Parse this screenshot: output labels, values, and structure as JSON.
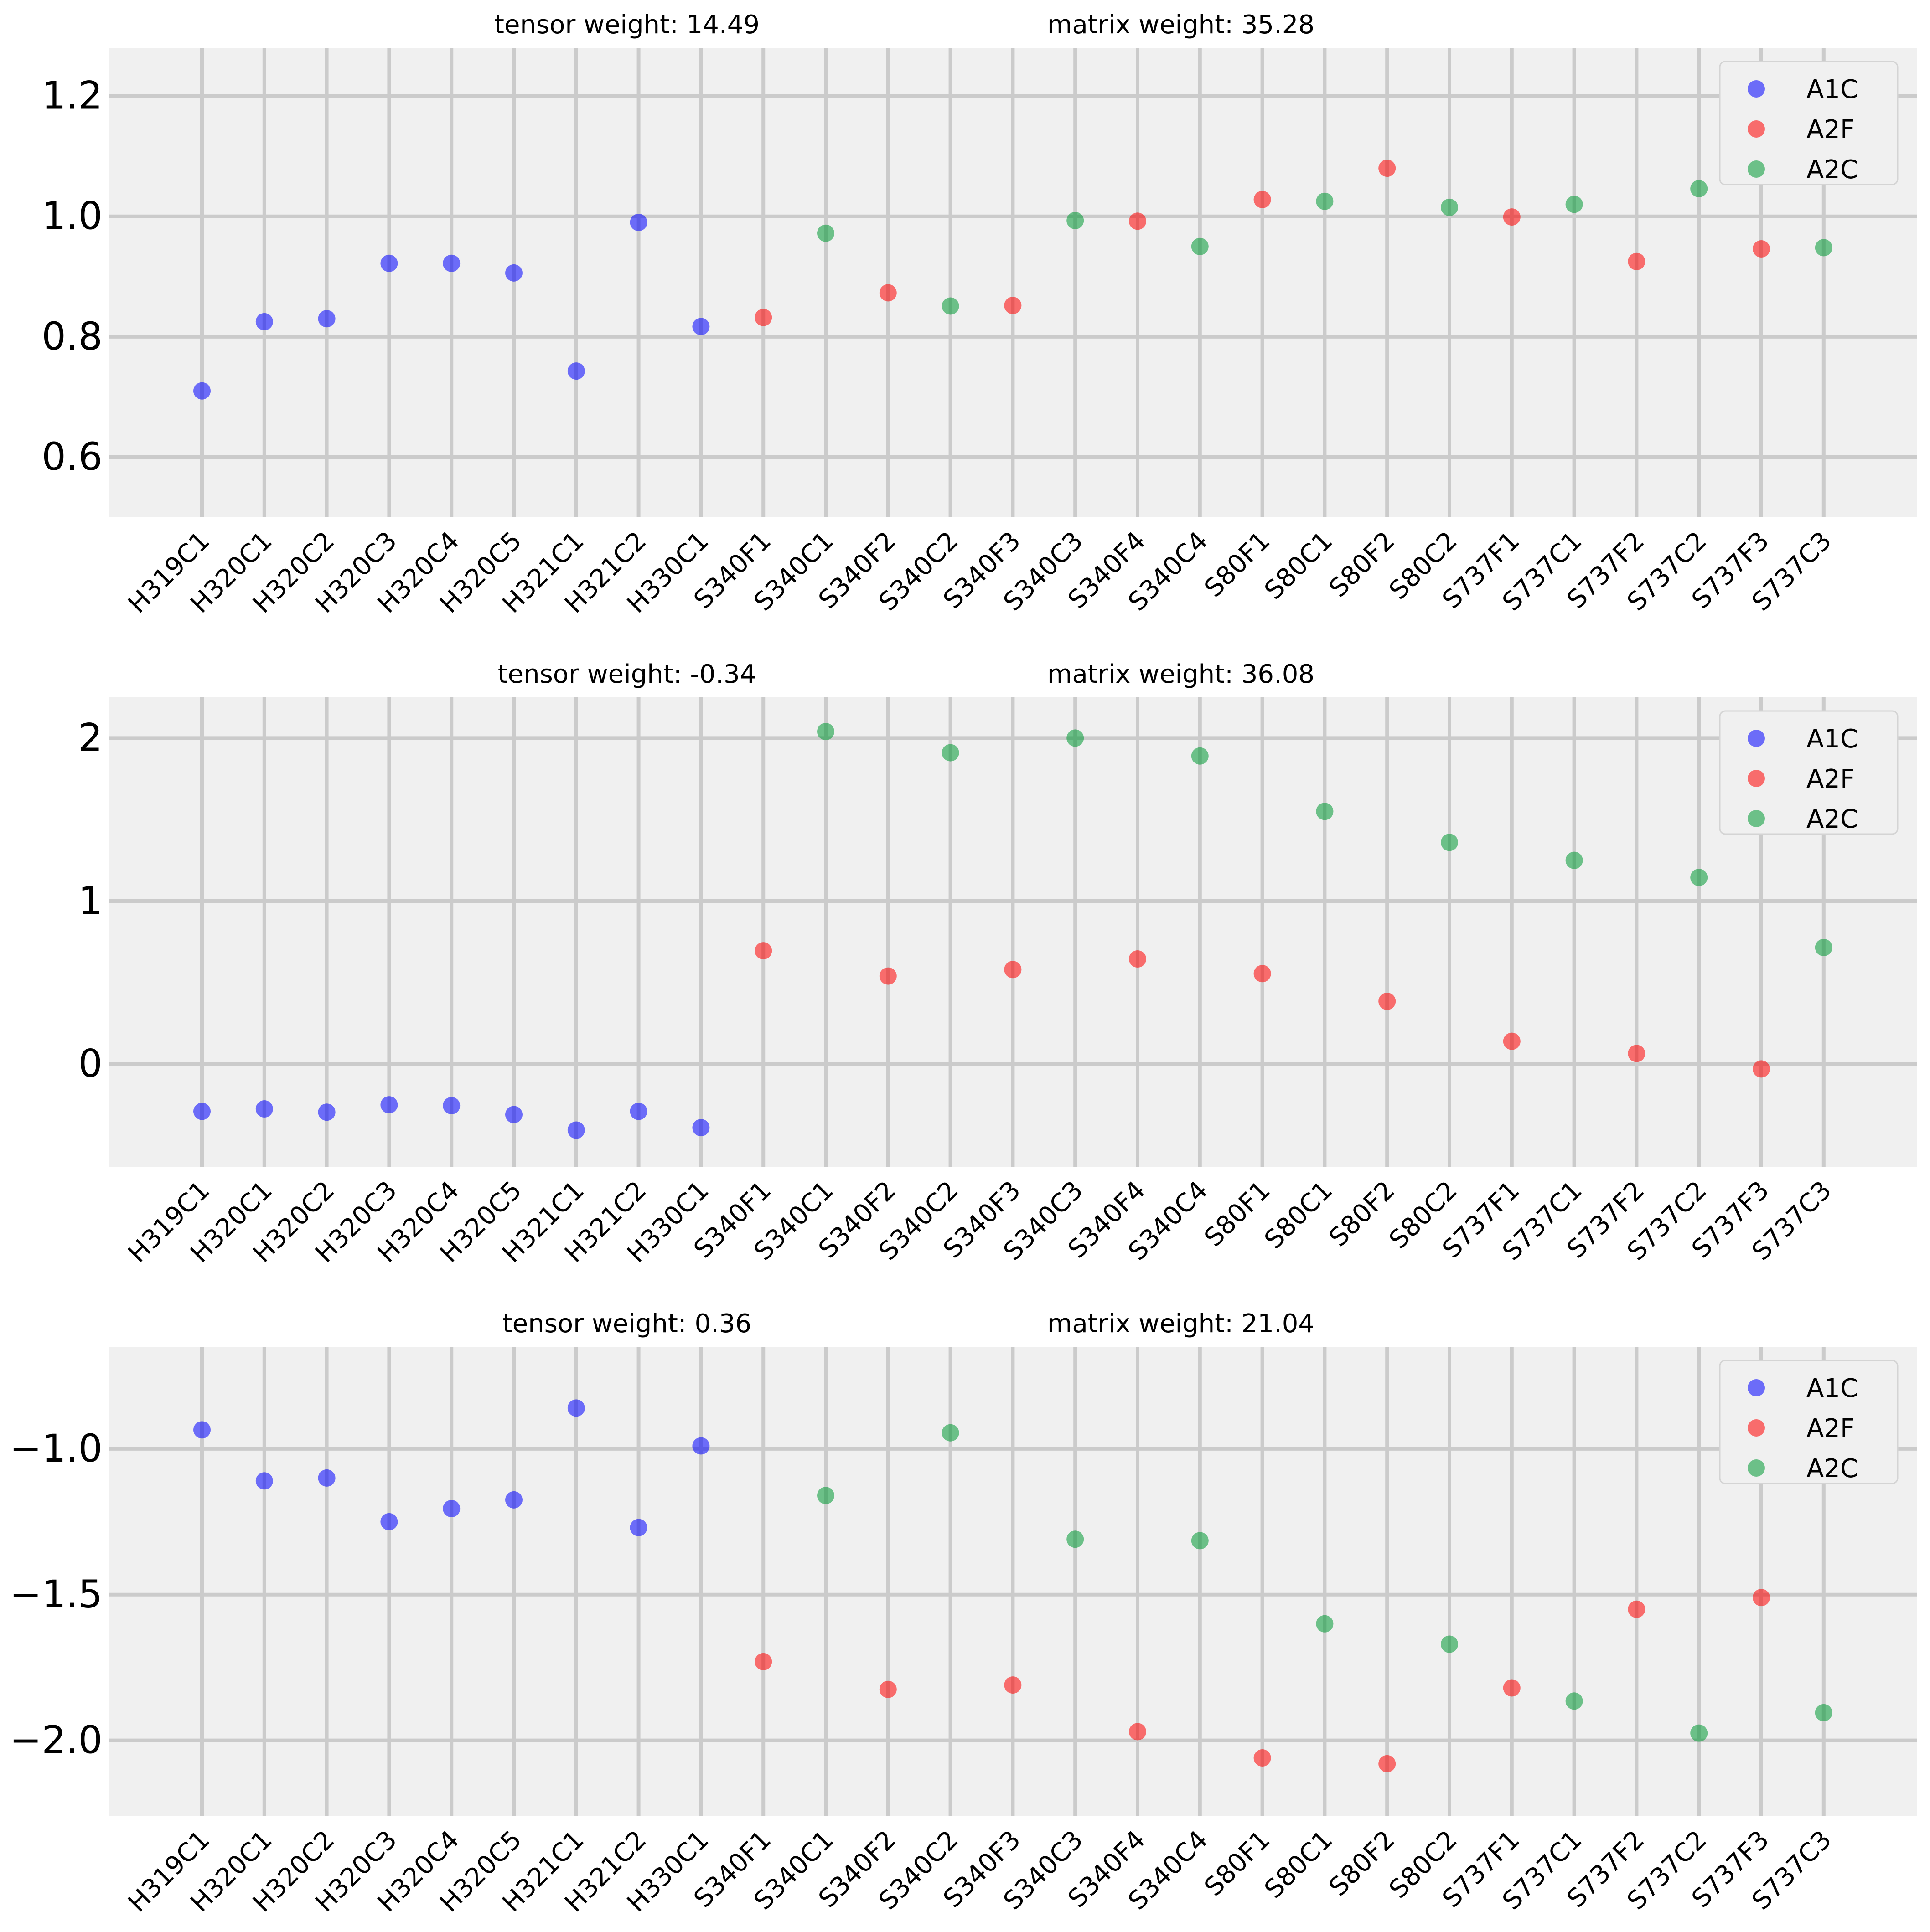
{
  "figure": {
    "background": "#ffffff",
    "axes_background": "#f0f0f0",
    "grid_color": "#cbcbcb"
  },
  "legend": {
    "entries": [
      {
        "key": "A1C",
        "label": "A1C",
        "color": "#0000ff"
      },
      {
        "key": "A2F",
        "label": "A2F",
        "color": "#ff0000"
      },
      {
        "key": "A2C",
        "label": "A2C",
        "color": "#009933"
      }
    ],
    "placement": "top-right"
  },
  "chart_data": [
    {
      "type": "scatter",
      "title_left": "tensor weight: 14.49",
      "title_right": "matrix weight: 35.28",
      "xlabel": "",
      "ylabel": "",
      "categories": [
        "H319C1",
        "H320C1",
        "H320C2",
        "H320C3",
        "H320C4",
        "H320C5",
        "H321C1",
        "H321C2",
        "H330C1",
        "S340F1",
        "S340C1",
        "S340F2",
        "S340C2",
        "S340F3",
        "S340C3",
        "S340F4",
        "S340C4",
        "S80F1",
        "S80C1",
        "S80F2",
        "S80C2",
        "S737F1",
        "S737C1",
        "S737F2",
        "S737C2",
        "S737F3",
        "S737C3"
      ],
      "groups": [
        "A1C",
        "A1C",
        "A1C",
        "A1C",
        "A1C",
        "A1C",
        "A1C",
        "A1C",
        "A1C",
        "A2F",
        "A2C",
        "A2F",
        "A2C",
        "A2F",
        "A2C",
        "A2F",
        "A2C",
        "A2F",
        "A2C",
        "A2F",
        "A2C",
        "A2F",
        "A2C",
        "A2F",
        "A2C",
        "A2F",
        "A2C"
      ],
      "values": [
        0.71,
        0.825,
        0.83,
        0.922,
        0.922,
        0.906,
        0.743,
        0.99,
        0.817,
        0.832,
        0.972,
        0.873,
        0.851,
        0.852,
        0.993,
        0.992,
        0.95,
        1.028,
        1.025,
        1.08,
        1.015,
        0.999,
        1.02,
        0.925,
        1.046,
        0.946,
        0.948
      ],
      "ylim": [
        0.5,
        1.28
      ],
      "yticks": [
        0.6,
        0.8,
        1.0,
        1.2
      ],
      "ytick_labels": [
        "0.6",
        "0.8",
        "1.0",
        "1.2"
      ],
      "grid": true
    },
    {
      "type": "scatter",
      "title_left": "tensor weight: -0.34",
      "title_right": "matrix weight: 36.08",
      "xlabel": "",
      "ylabel": "",
      "categories": [
        "H319C1",
        "H320C1",
        "H320C2",
        "H320C3",
        "H320C4",
        "H320C5",
        "H321C1",
        "H321C2",
        "H330C1",
        "S340F1",
        "S340C1",
        "S340F2",
        "S340C2",
        "S340F3",
        "S340C3",
        "S340F4",
        "S340C4",
        "S80F1",
        "S80C1",
        "S80F2",
        "S80C2",
        "S737F1",
        "S737C1",
        "S737F2",
        "S737C2",
        "S737F3",
        "S737C3"
      ],
      "groups": [
        "A1C",
        "A1C",
        "A1C",
        "A1C",
        "A1C",
        "A1C",
        "A1C",
        "A1C",
        "A1C",
        "A2F",
        "A2C",
        "A2F",
        "A2C",
        "A2F",
        "A2C",
        "A2F",
        "A2C",
        "A2F",
        "A2C",
        "A2F",
        "A2C",
        "A2F",
        "A2C",
        "A2F",
        "A2C",
        "A2F",
        "A2C"
      ],
      "values": [
        -0.29,
        -0.275,
        -0.295,
        -0.25,
        -0.255,
        -0.31,
        -0.405,
        -0.29,
        -0.39,
        0.695,
        2.04,
        0.54,
        1.91,
        0.58,
        2.0,
        0.645,
        1.89,
        0.555,
        1.55,
        0.385,
        1.36,
        0.14,
        1.25,
        0.065,
        1.145,
        -0.03,
        0.715
      ],
      "ylim": [
        -0.63,
        2.25
      ],
      "yticks": [
        0,
        1,
        2
      ],
      "ytick_labels": [
        "0",
        "1",
        "2"
      ],
      "grid": true
    },
    {
      "type": "scatter",
      "title_left": "tensor weight: 0.36",
      "title_right": "matrix weight: 21.04",
      "xlabel": "",
      "ylabel": "",
      "categories": [
        "H319C1",
        "H320C1",
        "H320C2",
        "H320C3",
        "H320C4",
        "H320C5",
        "H321C1",
        "H321C2",
        "H330C1",
        "S340F1",
        "S340C1",
        "S340F2",
        "S340C2",
        "S340F3",
        "S340C3",
        "S340F4",
        "S340C4",
        "S80F1",
        "S80C1",
        "S80F2",
        "S80C2",
        "S737F1",
        "S737C1",
        "S737F2",
        "S737C2",
        "S737F3",
        "S737C3"
      ],
      "groups": [
        "A1C",
        "A1C",
        "A1C",
        "A1C",
        "A1C",
        "A1C",
        "A1C",
        "A1C",
        "A1C",
        "A2F",
        "A2C",
        "A2F",
        "A2C",
        "A2F",
        "A2C",
        "A2F",
        "A2C",
        "A2F",
        "A2C",
        "A2F",
        "A2C",
        "A2F",
        "A2C",
        "A2F",
        "A2C",
        "A2F",
        "A2C"
      ],
      "values": [
        -0.935,
        -1.11,
        -1.1,
        -1.25,
        -1.205,
        -1.175,
        -0.86,
        -1.27,
        -0.99,
        -1.73,
        -1.16,
        -1.825,
        -0.945,
        -1.81,
        -1.31,
        -1.97,
        -1.315,
        -2.06,
        -1.6,
        -2.08,
        -1.67,
        -1.82,
        -1.865,
        -1.55,
        -1.975,
        -1.51,
        -1.905
      ],
      "ylim": [
        -2.26,
        -0.65
      ],
      "yticks": [
        -2.0,
        -1.5,
        -1.0
      ],
      "ytick_labels": [
        "−2.0",
        "−1.5",
        "−1.0"
      ],
      "grid": true
    }
  ]
}
